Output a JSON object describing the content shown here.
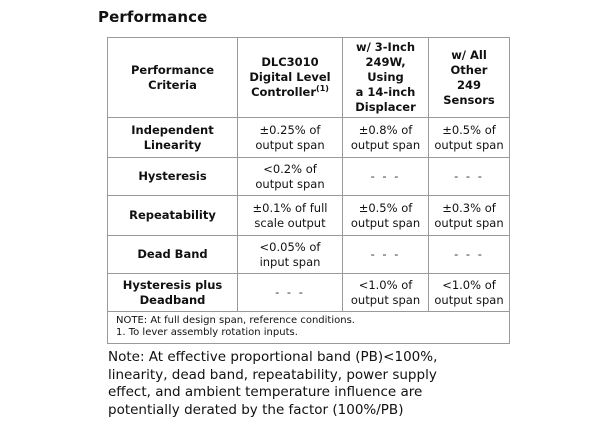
{
  "heading": "Performance",
  "table": {
    "headers": [
      {
        "lines": [
          "Performance",
          "Criteria"
        ]
      },
      {
        "lines": [
          "DLC3010",
          "Digital Level",
          "Controller"
        ],
        "sup": "(1)"
      },
      {
        "lines": [
          "w/ 3-Inch",
          "249W, Using",
          "a 14-inch",
          "Displacer"
        ]
      },
      {
        "lines": [
          "w/ All Other",
          "249 Sensors"
        ]
      }
    ],
    "rows": [
      {
        "criteria": [
          "Independent",
          "Linearity"
        ],
        "dlc": [
          "±0.25% of",
          "output span"
        ],
        "w249": [
          "±0.8% of",
          "output span"
        ],
        "other": [
          "±0.5% of",
          "output span"
        ]
      },
      {
        "criteria": [
          "Hysteresis"
        ],
        "dlc": [
          "<0.2% of",
          "output span"
        ],
        "w249": [
          "- - -"
        ],
        "other": [
          "- - -"
        ]
      },
      {
        "criteria": [
          "Repeatability"
        ],
        "dlc": [
          "±0.1% of full",
          "scale output"
        ],
        "w249": [
          "±0.5% of",
          "output span"
        ],
        "other": [
          "±0.3% of",
          "output span"
        ]
      },
      {
        "criteria": [
          "Dead Band"
        ],
        "dlc": [
          "<0.05% of",
          "input span"
        ],
        "w249": [
          "- - -"
        ],
        "other": [
          "- - -"
        ]
      },
      {
        "criteria": [
          "Hysteresis plus",
          "Deadband"
        ],
        "dlc": [
          "- - -"
        ],
        "w249": [
          "<1.0% of",
          "output span"
        ],
        "other": [
          "<1.0% of",
          "output span"
        ]
      }
    ],
    "notes": [
      "NOTE: At full design span, reference conditions.",
      "1. To lever assembly rotation inputs."
    ]
  },
  "footnote_lines": [
    "Note: At effective proportional band (PB)<100%,",
    "linearity, dead band, repeatability, power supply",
    "effect, and ambient temperature influence are",
    "potentially derated by the factor (100%/PB)"
  ]
}
